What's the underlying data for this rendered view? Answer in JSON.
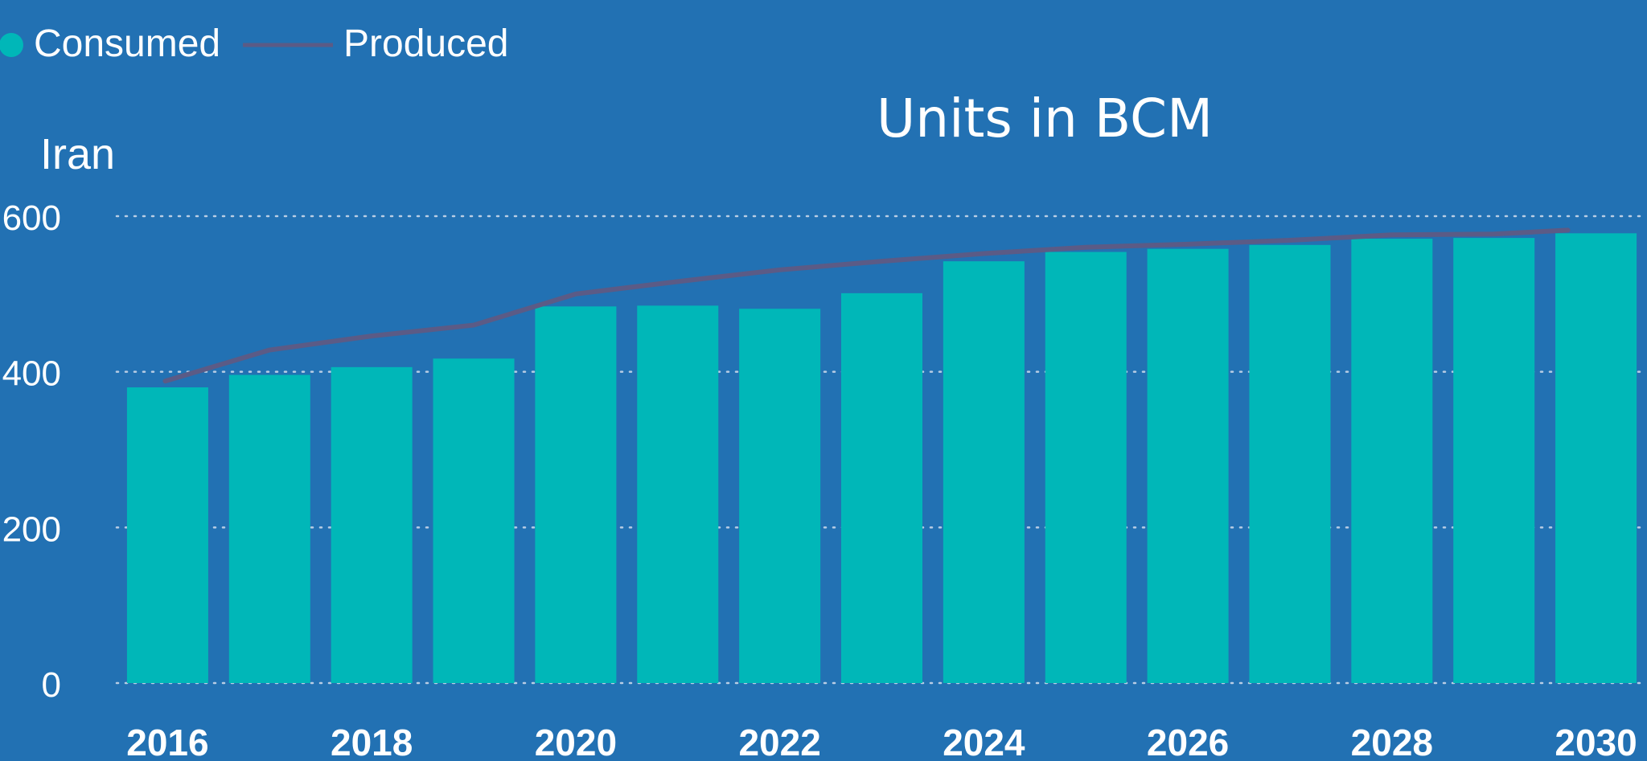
{
  "legend": {
    "items": [
      {
        "label": "Consumed",
        "marker": "dot",
        "color": "#00b7b8"
      },
      {
        "label": "Produced",
        "marker": "line",
        "color": "#5b5b86"
      }
    ]
  },
  "chart_data": {
    "type": "bar",
    "title": "Iran",
    "subtitle": "Units in BCM",
    "x": [
      2016,
      2017,
      2018,
      2019,
      2020,
      2021,
      2022,
      2023,
      2024,
      2025,
      2026,
      2027,
      2028,
      2029,
      2030
    ],
    "x_tick_labels": [
      "2016",
      "2018",
      "2020",
      "2022",
      "2024",
      "2026",
      "2028",
      "2030"
    ],
    "ylim": [
      0,
      600
    ],
    "y_ticks": [
      0,
      200,
      400,
      600
    ],
    "grid": true,
    "legend_position": "top-left",
    "series": [
      {
        "name": "Consumed",
        "type": "bar",
        "color": "#00b7b8",
        "values": [
          380,
          396,
          406,
          417,
          484,
          485,
          481,
          501,
          542,
          554,
          558,
          563,
          571,
          572,
          578
        ]
      },
      {
        "name": "Produced",
        "type": "line",
        "color": "#5b5b86",
        "values": [
          388,
          428,
          446,
          460,
          500,
          516,
          531,
          542,
          552,
          560,
          564,
          569,
          576,
          577,
          582
        ]
      }
    ]
  }
}
